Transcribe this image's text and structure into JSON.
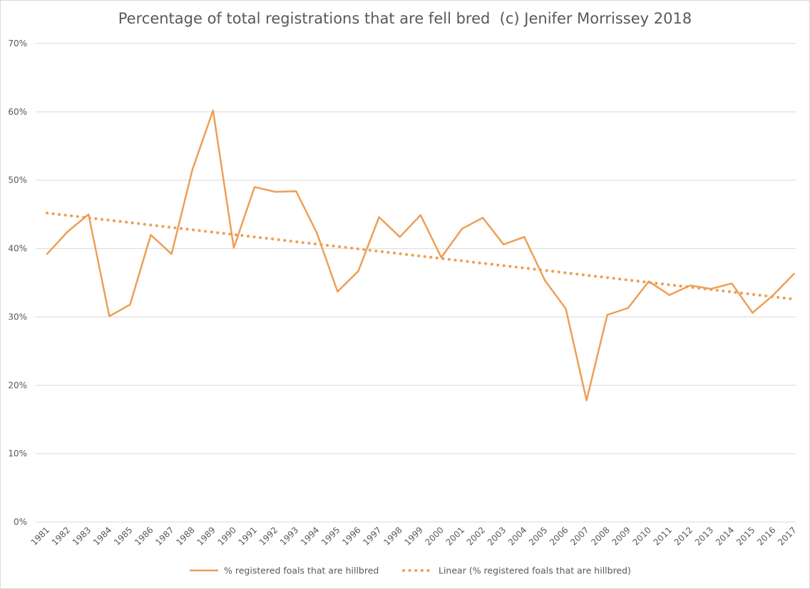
{
  "chart_data": {
    "type": "line",
    "title": "Percentage of total registrations that are fell bred  (c) Jenifer Morrissey 2018",
    "xlabel": "",
    "ylabel": "",
    "ylim": [
      0,
      70
    ],
    "y_ticks": [
      "0%",
      "10%",
      "20%",
      "30%",
      "40%",
      "50%",
      "60%",
      "70%"
    ],
    "grid": true,
    "legend_position": "bottom",
    "categories": [
      "1981",
      "1982",
      "1983",
      "1984",
      "1985",
      "1986",
      "1987",
      "1988",
      "1989",
      "1990",
      "1991",
      "1992",
      "1993",
      "1994",
      "1995",
      "1996",
      "1997",
      "1998",
      "1999",
      "2000",
      "2001",
      "2002",
      "2003",
      "2004",
      "2005",
      "2006",
      "2007",
      "2008",
      "2009",
      "2010",
      "2011",
      "2012",
      "2013",
      "2014",
      "2015",
      "2016",
      "2017"
    ],
    "series": [
      {
        "name": "% registered foals that are hillbred",
        "style": "solid",
        "color": "#ED9F55",
        "values": [
          39.2,
          42.5,
          45.0,
          30.1,
          31.8,
          42.0,
          39.2,
          51.5,
          60.2,
          40.1,
          49.0,
          48.3,
          48.4,
          42.3,
          33.7,
          36.7,
          44.6,
          41.7,
          44.9,
          38.7,
          42.9,
          44.5,
          40.6,
          41.7,
          35.3,
          31.2,
          17.8,
          30.3,
          31.3,
          35.2,
          33.2,
          34.6,
          34.1,
          34.9,
          30.6,
          33.2,
          36.3
        ]
      },
      {
        "name": "Linear (% registered foals that are hillbred)",
        "style": "dotted",
        "color": "#ED9F55",
        "values": [
          45.2,
          44.85,
          44.5,
          44.15,
          43.8,
          43.45,
          43.1,
          42.75,
          42.4,
          42.05,
          41.7,
          41.35,
          41.0,
          40.65,
          40.3,
          39.95,
          39.6,
          39.25,
          38.9,
          38.55,
          38.2,
          37.85,
          37.5,
          37.15,
          36.8,
          36.45,
          36.1,
          35.75,
          35.4,
          35.05,
          34.7,
          34.35,
          34.0,
          33.65,
          33.3,
          32.95,
          32.6
        ]
      }
    ]
  }
}
